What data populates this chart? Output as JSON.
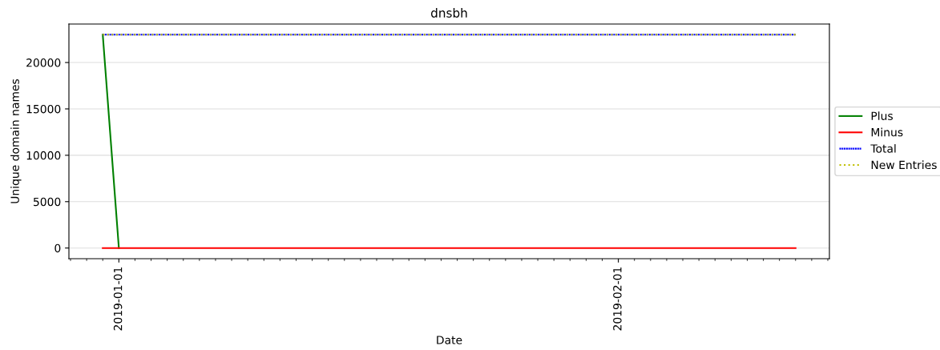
{
  "chart_data": {
    "type": "line",
    "title": "dnsbh",
    "xlabel": "Date",
    "ylabel": "Unique domain names",
    "x": [
      "2018-12-31",
      "2019-01-01",
      "2019-01-02",
      "2019-01-03",
      "2019-01-04",
      "2019-01-05",
      "2019-01-06",
      "2019-01-07",
      "2019-01-08",
      "2019-01-09",
      "2019-01-10",
      "2019-01-11",
      "2019-01-12",
      "2019-01-13",
      "2019-01-14",
      "2019-01-15",
      "2019-01-16",
      "2019-01-17",
      "2019-01-18",
      "2019-01-19",
      "2019-01-20",
      "2019-01-21",
      "2019-01-22",
      "2019-01-23",
      "2019-01-24",
      "2019-01-25",
      "2019-01-26",
      "2019-01-27",
      "2019-01-28",
      "2019-01-29",
      "2019-01-30",
      "2019-01-31",
      "2019-02-01",
      "2019-02-02",
      "2019-02-03",
      "2019-02-04",
      "2019-02-05",
      "2019-02-06",
      "2019-02-07",
      "2019-02-08",
      "2019-02-09",
      "2019-02-10",
      "2019-02-11",
      "2019-02-12"
    ],
    "series": [
      {
        "name": "Plus",
        "color": "#008000",
        "line_style": "solid",
        "values": [
          23000,
          0,
          null,
          null,
          null,
          null,
          null,
          null,
          null,
          null,
          null,
          null,
          null,
          null,
          null,
          null,
          null,
          null,
          null,
          null,
          null,
          null,
          null,
          null,
          null,
          null,
          null,
          null,
          null,
          null,
          null,
          null,
          null,
          null,
          null,
          null,
          null,
          null,
          null,
          null,
          null,
          null,
          null,
          null
        ]
      },
      {
        "name": "Minus",
        "color": "#ff0000",
        "line_style": "solid",
        "values": [
          0,
          0,
          0,
          0,
          0,
          0,
          0,
          0,
          0,
          0,
          0,
          0,
          0,
          0,
          0,
          0,
          0,
          0,
          0,
          0,
          0,
          0,
          0,
          0,
          0,
          0,
          0,
          0,
          0,
          0,
          0,
          0,
          0,
          0,
          0,
          0,
          0,
          0,
          0,
          0,
          0,
          0,
          0,
          0
        ]
      },
      {
        "name": "Total",
        "color": "#0000ff",
        "line_style": "dotted",
        "values": [
          23000,
          23000,
          23000,
          23000,
          23000,
          23000,
          23000,
          23000,
          23000,
          23000,
          23000,
          23000,
          23000,
          23000,
          23000,
          23000,
          23000,
          23000,
          23000,
          23000,
          23000,
          23000,
          23000,
          23000,
          23000,
          23000,
          23000,
          23000,
          23000,
          23000,
          23000,
          23000,
          23000,
          23000,
          23000,
          23000,
          23000,
          23000,
          23000,
          23000,
          23000,
          23000,
          23000,
          23000
        ]
      },
      {
        "name": "New Entries",
        "color": "#bfbf00",
        "line_style": "dotted",
        "values": [
          23000,
          23000,
          23000,
          23000,
          23000,
          23000,
          23000,
          23000,
          23000,
          23000,
          23000,
          23000,
          23000,
          23000,
          23000,
          23000,
          23000,
          23000,
          23000,
          23000,
          23000,
          23000,
          23000,
          23000,
          23000,
          23000,
          23000,
          23000,
          23000,
          23000,
          23000,
          23000,
          23000,
          23000,
          23000,
          23000,
          23000,
          23000,
          23000,
          23000,
          23000,
          23000,
          23000,
          23000
        ]
      }
    ],
    "xlim": [
      "2018-12-28T21:36",
      "2019-02-14T02:24"
    ],
    "xticks": [
      {
        "value": "2019-01-01",
        "label": "2019-01-01"
      },
      {
        "value": "2019-02-01",
        "label": "2019-02-01"
      }
    ],
    "ylim": [
      -1150,
      24150
    ],
    "yticks": [
      0,
      5000,
      10000,
      15000,
      20000
    ],
    "grid": "y",
    "legend": "right",
    "marker": "none"
  }
}
